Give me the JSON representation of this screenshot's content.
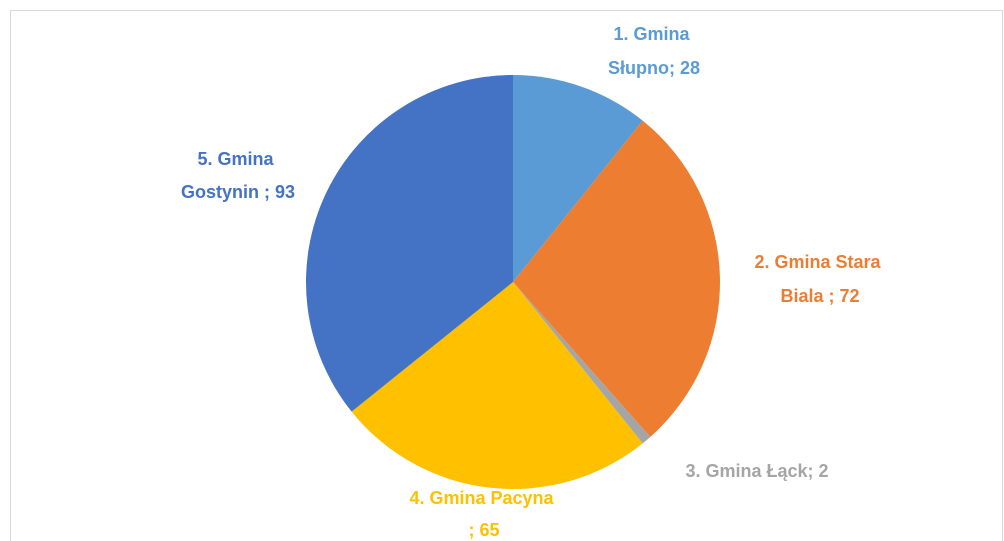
{
  "chart_data": {
    "type": "pie",
    "title": "",
    "start_angle_deg": 0,
    "direction": "clockwise",
    "slices": [
      {
        "label_line1": "1. Gmina",
        "label_line2": "Słupno; 28",
        "category": "1. Gmina Słupno",
        "value": 28,
        "color": "#5b9bd5"
      },
      {
        "label_line1": "2. Gmina Stara",
        "label_line2": "Biala ; 72",
        "category": "2. Gmina Stara Biala",
        "value": 72,
        "color": "#ed7d31"
      },
      {
        "label_line1": "3. Gmina Łąck; 2",
        "label_line2": "",
        "category": "3. Gmina Łąck",
        "value": 2,
        "color": "#a5a5a5"
      },
      {
        "label_line1": "4. Gmina Pacyna",
        "label_line2": "; 65",
        "category": "4. Gmina Pacyna",
        "value": 65,
        "color": "#ffc000"
      },
      {
        "label_line1": "5. Gmina",
        "label_line2": "Gostynin ; 93",
        "category": "5. Gmina Gostynin",
        "value": 93,
        "color": "#4472c4"
      }
    ]
  }
}
